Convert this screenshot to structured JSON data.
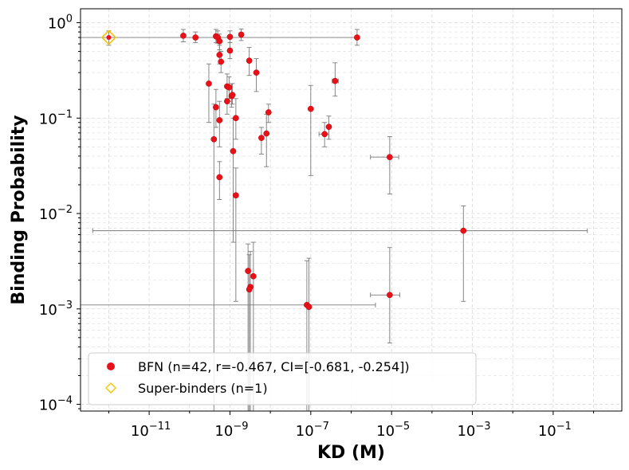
{
  "chart_data": {
    "type": "scatter",
    "xscale": "log",
    "yscale": "log",
    "xlabel": "KD (M)",
    "ylabel": "Binding Probability",
    "xlim": [
      2e-13,
      5
    ],
    "ylim": [
      8.5e-05,
      1.4
    ],
    "grid": true,
    "legend_position": "lower-left",
    "x_ticks": [
      {
        "value": 1e-11,
        "base": "10",
        "exp": "−11"
      },
      {
        "value": 1e-09,
        "base": "10",
        "exp": "−9"
      },
      {
        "value": 1e-07,
        "base": "10",
        "exp": "−7"
      },
      {
        "value": 1e-05,
        "base": "10",
        "exp": "−5"
      },
      {
        "value": 0.001,
        "base": "10",
        "exp": "−3"
      },
      {
        "value": 0.1,
        "base": "10",
        "exp": "−1"
      }
    ],
    "y_ticks": [
      {
        "value": 0.0001,
        "base": "10",
        "exp": "−4"
      },
      {
        "value": 0.001,
        "base": "10",
        "exp": "−3"
      },
      {
        "value": 0.01,
        "base": "10",
        "exp": "−2"
      },
      {
        "value": 0.1,
        "base": "10",
        "exp": "−1"
      },
      {
        "value": 1,
        "base": "10",
        "exp": "0"
      }
    ],
    "series": [
      {
        "name": "BFN (n=42, r=-0.467, CI=[-0.681, -0.254])",
        "marker": "circle",
        "color": "#e8111a",
        "points": [
          {
            "x": 7e-11,
            "y": 0.73,
            "ylo": 0.63,
            "yhi": 0.85
          },
          {
            "x": 1.4e-10,
            "y": 0.7,
            "ylo": 0.62,
            "yhi": 0.8
          },
          {
            "x": 4.5e-10,
            "y": 0.72,
            "ylo": 0.62,
            "yhi": 0.85
          },
          {
            "x": 5e-10,
            "y": 0.7,
            "ylo": 0.61,
            "yhi": 0.82
          },
          {
            "x": 5.5e-10,
            "y": 0.64,
            "ylo": 0.52,
            "yhi": 0.76
          },
          {
            "x": 5.5e-10,
            "y": 0.46,
            "ylo": 0.37,
            "yhi": 0.58
          },
          {
            "x": 6e-10,
            "y": 0.39,
            "ylo": 0.3,
            "yhi": 0.5
          },
          {
            "x": 1e-09,
            "y": 0.71,
            "ylo": 0.62,
            "yhi": 0.82
          },
          {
            "x": 1.9e-09,
            "y": 0.75,
            "ylo": 0.65,
            "yhi": 0.86
          },
          {
            "x": 1e-09,
            "y": 0.51,
            "ylo": 0.42,
            "yhi": 0.62
          },
          {
            "x": 3e-10,
            "y": 0.23,
            "ylo": 0.09,
            "yhi": 0.37
          },
          {
            "x": 8.5e-10,
            "y": 0.215,
            "ylo": 0.16,
            "yhi": 0.29
          },
          {
            "x": 9.5e-10,
            "y": 0.21,
            "ylo": 0.15,
            "yhi": 0.27
          },
          {
            "x": 8.5e-10,
            "y": 0.15,
            "ylo": 0.11,
            "yhi": 0.21
          },
          {
            "x": 1.1e-09,
            "y": 0.17,
            "ylo": 0.13,
            "yhi": 0.23
          },
          {
            "x": 1.15e-09,
            "y": 0.175,
            "ylo": 0.14,
            "yhi": 0.23
          },
          {
            "x": 4.5e-10,
            "y": 0.13,
            "ylo": 0.08,
            "yhi": 0.2
          },
          {
            "x": 1.4e-09,
            "y": 0.1,
            "ylo": 0.06,
            "yhi": 0.16
          },
          {
            "x": 5.5e-10,
            "y": 0.095,
            "ylo": 0.05,
            "yhi": 0.15
          },
          {
            "x": 4e-10,
            "y": 0.06,
            "ylo": 2e-05,
            "yhi": 0.14
          },
          {
            "x": 1.2e-09,
            "y": 0.045,
            "ylo": 0.005,
            "yhi": 0.1
          },
          {
            "x": 5.5e-10,
            "y": 0.024,
            "ylo": 0.014,
            "yhi": 0.035
          },
          {
            "x": 1.4e-09,
            "y": 0.0155,
            "ylo": 0.0012,
            "yhi": 0.03
          },
          {
            "x": 3e-09,
            "y": 0.4,
            "ylo": 0.28,
            "yhi": 0.55
          },
          {
            "x": 4.5e-09,
            "y": 0.3,
            "ylo": 0.19,
            "yhi": 0.42
          },
          {
            "x": 9e-09,
            "y": 0.115,
            "ylo": 0.09,
            "yhi": 0.14
          },
          {
            "x": 8e-09,
            "y": 0.069,
            "ylo": 0.031,
            "yhi": 0.11
          },
          {
            "x": 6e-09,
            "y": 0.062,
            "ylo": 0.042,
            "yhi": 0.08
          },
          {
            "x": 1e-07,
            "y": 0.125,
            "ylo": 0.025,
            "yhi": 0.22
          },
          {
            "x": 4e-07,
            "y": 0.245,
            "ylo": 0.17,
            "yhi": 0.38,
            "xlo": 3.4e-07,
            "xhi": 4.8e-07
          },
          {
            "x": 2.8e-07,
            "y": 0.081,
            "ylo": 0.06,
            "yhi": 0.105
          },
          {
            "x": 2.2e-07,
            "y": 0.068,
            "ylo": 0.05,
            "yhi": 0.09,
            "xlo": 1.6e-07,
            "xhi": 2.8e-07
          },
          {
            "x": 1.4e-06,
            "y": 0.7,
            "ylo": 0.58,
            "yhi": 0.85
          },
          {
            "x": 9e-06,
            "y": 0.039,
            "ylo": 0.016,
            "yhi": 0.064,
            "xlo": 3e-06,
            "xhi": 1.5e-05
          },
          {
            "x": 0.0006,
            "y": 0.0066,
            "ylo": 0.0012,
            "yhi": 0.012,
            "xlo": 4e-13,
            "xhi": 0.7
          },
          {
            "x": 2.8e-09,
            "y": 0.0025,
            "ylo": 2e-05,
            "yhi": 0.0048
          },
          {
            "x": 3.2e-09,
            "y": 0.0017,
            "ylo": 2e-05,
            "yhi": 0.004
          },
          {
            "x": 3e-09,
            "y": 0.0016,
            "ylo": 2e-05,
            "yhi": 0.0037
          },
          {
            "x": 3.8e-09,
            "y": 0.0022,
            "ylo": 2e-05,
            "yhi": 0.005
          },
          {
            "x": 8e-08,
            "y": 0.0011,
            "ylo": 2e-05,
            "yhi": 0.0032,
            "xlo": 2e-13,
            "xhi": 4e-06
          },
          {
            "x": 9e-08,
            "y": 0.00105,
            "ylo": 2e-05,
            "yhi": 0.0034
          },
          {
            "x": 9e-06,
            "y": 0.0014,
            "ylo": 0.00044,
            "yhi": 0.0044,
            "xlo": 3e-06,
            "xhi": 1.6e-05
          }
        ]
      },
      {
        "name": "Super-binders (n=1)",
        "marker": "diamond-open",
        "color": "#f5c400",
        "points": [
          {
            "x": 1e-12,
            "y": 0.7,
            "ylo": 0.58,
            "yhi": 0.82,
            "xlo": 2e-13,
            "xhi": 1.5e-06
          }
        ]
      }
    ]
  }
}
